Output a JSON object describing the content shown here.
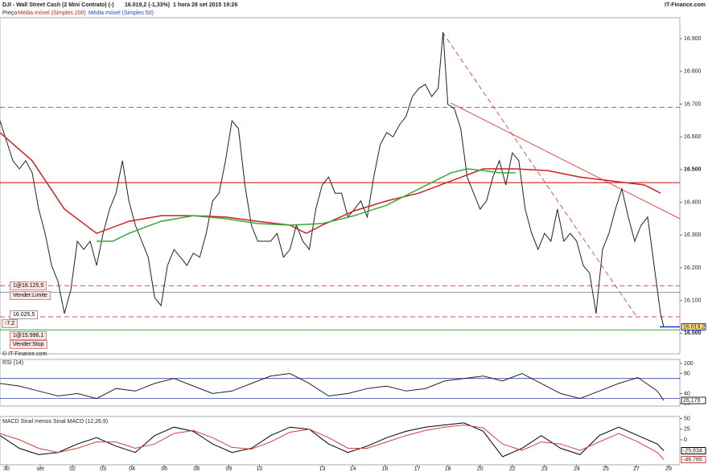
{
  "header": {
    "title": "DJI - Wall Street Cash (2 Mini Contrato) (-)",
    "last": "16.019,2 (-1,33%)",
    "interval": "1 hora",
    "timestamp": "28 set 2015 19:26",
    "brand": "IT-Finance.com",
    "watermark": "© IT-Finance.com"
  },
  "orders": [
    {
      "label": "1@16.125,5",
      "action": "Vender:Limite"
    },
    {
      "label": "1@15.996,1",
      "action": "Vender:Stop"
    }
  ],
  "position": {
    "price": "16.025,5",
    "pnl": "-7.2"
  },
  "chart_data": [
    {
      "type": "line",
      "xlim": [
        0,
        211
      ],
      "ylim": [
        15937,
        16964
      ],
      "yticks": [
        {
          "value": 16000,
          "label": "16.000"
        },
        {
          "value": 16100,
          "label": "16.100"
        },
        {
          "value": 16200,
          "label": "16.200"
        },
        {
          "value": 16300,
          "label": "16.300"
        },
        {
          "value": 16400,
          "label": "16.400"
        },
        {
          "value": 16500,
          "label": "16.500"
        },
        {
          "value": 16600,
          "label": "16.600"
        },
        {
          "value": 16700,
          "label": "16.700"
        },
        {
          "value": 16800,
          "label": "16.800"
        },
        {
          "value": 16900,
          "label": "16.900"
        }
      ],
      "levels": [
        {
          "value": 16690,
          "color": "#e05050",
          "dashed": true
        },
        {
          "value": 16460,
          "color": "#cc0000",
          "dashed": false
        },
        {
          "value": 16145,
          "color": "#e05050",
          "dashed": true
        },
        {
          "value": 16125,
          "color": "#999999",
          "dashed": false
        },
        {
          "value": 16050,
          "color": "#e05050",
          "dashed": true
        },
        {
          "value": 16010,
          "color": "#33aa33",
          "dashed": false
        }
      ],
      "last_price": {
        "value": 16019.2,
        "label": "16.019,2"
      },
      "series": [
        {
          "name": "Preço",
          "color": "#222222",
          "x": [
            0,
            2,
            4,
            6,
            8,
            10,
            12,
            14,
            16,
            18,
            20,
            22,
            24,
            26,
            28,
            30,
            32,
            34,
            36,
            38,
            40,
            42,
            44,
            46,
            48,
            50,
            52,
            54,
            56,
            58,
            60,
            62,
            64,
            66,
            68,
            70,
            72,
            74,
            76,
            78,
            80,
            82,
            84,
            86,
            88,
            90,
            92,
            94,
            96,
            98,
            100,
            102,
            104,
            106,
            108,
            110,
            112,
            114,
            116,
            118,
            120,
            122,
            124,
            126,
            128,
            130,
            132,
            134,
            136,
            137.5,
            139,
            141,
            143,
            145,
            147,
            149,
            151,
            153,
            155,
            157,
            159,
            161,
            163,
            165,
            167,
            169,
            171,
            173,
            175,
            177,
            179,
            181,
            183,
            185,
            187,
            189,
            191,
            193,
            195,
            197,
            199,
            201,
            203,
            205,
            206
          ],
          "values": [
            16649,
            16588,
            16527,
            16502,
            16527,
            16490,
            16379,
            16305,
            16207,
            16158,
            16060,
            16133,
            16281,
            16256,
            16281,
            16207,
            16305,
            16379,
            16428,
            16527,
            16404,
            16330,
            16281,
            16232,
            16109,
            16084,
            16207,
            16256,
            16232,
            16207,
            16244,
            16232,
            16305,
            16404,
            16428,
            16527,
            16649,
            16625,
            16453,
            16330,
            16281,
            16281,
            16281,
            16305,
            16232,
            16256,
            16330,
            16281,
            16256,
            16379,
            16453,
            16477,
            16428,
            16428,
            16355,
            16379,
            16404,
            16355,
            16477,
            16576,
            16613,
            16600,
            16637,
            16662,
            16723,
            16748,
            16760,
            16723,
            16748,
            16920,
            16699,
            16686,
            16625,
            16477,
            16428,
            16379,
            16404,
            16477,
            16527,
            16453,
            16551,
            16527,
            16379,
            16305,
            16256,
            16305,
            16281,
            16379,
            16281,
            16305,
            16281,
            16207,
            16183,
            16060,
            16256,
            16305,
            16379,
            16441,
            16355,
            16281,
            16330,
            16355,
            16207,
            16060,
            16019
          ]
        },
        {
          "name": "Média móvel (Simples 200)",
          "color": "#cc2222",
          "x": [
            0,
            10,
            20,
            30,
            40,
            50,
            60,
            70,
            80,
            90,
            95,
            100,
            110,
            120,
            130,
            140,
            150,
            160,
            170,
            180,
            190,
            200,
            205
          ],
          "values": [
            16613,
            16527,
            16379,
            16305,
            16342,
            16359,
            16359,
            16355,
            16342,
            16330,
            16305,
            16330,
            16374,
            16404,
            16428,
            16465,
            16502,
            16502,
            16497,
            16477,
            16465,
            16453,
            16428
          ]
        },
        {
          "name": "Média móvel (Simples 50)",
          "color": "#33aa33",
          "x": [
            30,
            35,
            40,
            50,
            60,
            70,
            80,
            90,
            100,
            110,
            120,
            130,
            140,
            145,
            150,
            155,
            160
          ],
          "values": [
            16281,
            16281,
            16305,
            16342,
            16359,
            16350,
            16335,
            16330,
            16335,
            16359,
            16391,
            16441,
            16490,
            16502,
            16497,
            16490,
            16490
          ]
        }
      ]
    },
    {
      "type": "line",
      "title": "RSI (14)",
      "xlim": [
        0,
        211
      ],
      "ylim": [
        15,
        108
      ],
      "yticks": [
        20,
        40,
        80,
        100
      ],
      "bands": [
        70,
        30
      ],
      "series": [
        {
          "color": "#222222",
          "last_label": "26,179",
          "x": [
            0,
            6,
            12,
            18,
            24,
            30,
            36,
            42,
            48,
            54,
            60,
            66,
            72,
            78,
            84,
            90,
            96,
            102,
            108,
            114,
            120,
            126,
            132,
            138,
            144,
            150,
            156,
            162,
            168,
            174,
            180,
            186,
            192,
            198,
            204,
            206
          ],
          "values": [
            60,
            55,
            45,
            35,
            40,
            30,
            50,
            45,
            60,
            70,
            55,
            40,
            45,
            60,
            75,
            80,
            60,
            35,
            40,
            50,
            55,
            45,
            50,
            65,
            70,
            75,
            65,
            80,
            60,
            40,
            30,
            45,
            60,
            72,
            45,
            26.179
          ]
        }
      ]
    },
    {
      "type": "line",
      "title": "MACD Sinal menos Sinal MACD (12,26,9)",
      "xlim": [
        0,
        211
      ],
      "ylim": [
        -59,
        55
      ],
      "yticks": [
        0,
        25,
        50
      ],
      "xticks": [
        {
          "value": 2,
          "label": "30"
        },
        {
          "value": 12.5,
          "label": "set"
        },
        {
          "value": 22.5,
          "label": "02"
        },
        {
          "value": 32,
          "label": "03"
        },
        {
          "value": 41,
          "label": "04"
        },
        {
          "value": 51,
          "label": "06"
        },
        {
          "value": 61,
          "label": "08"
        },
        {
          "value": 71,
          "label": "09"
        },
        {
          "value": 80.5,
          "label": "10"
        },
        {
          "value": 100,
          "label": "13"
        },
        {
          "value": 109.5,
          "label": "14"
        },
        {
          "value": 119.5,
          "label": "16"
        },
        {
          "value": 129.5,
          "label": "17"
        },
        {
          "value": 139,
          "label": "18"
        },
        {
          "value": 149,
          "label": "20"
        },
        {
          "value": 159,
          "label": "22"
        },
        {
          "value": 169,
          "label": "23"
        },
        {
          "value": 179,
          "label": "24"
        },
        {
          "value": 188,
          "label": "25"
        },
        {
          "value": 197.5,
          "label": "27"
        },
        {
          "value": 207.5,
          "label": "29"
        }
      ],
      "series": [
        {
          "color": "#000000",
          "last_label": "-25,834",
          "x": [
            0,
            6,
            12,
            18,
            24,
            30,
            36,
            42,
            48,
            54,
            60,
            66,
            72,
            78,
            84,
            90,
            96,
            102,
            108,
            114,
            120,
            126,
            132,
            138,
            144,
            150,
            156,
            162,
            168,
            174,
            180,
            186,
            192,
            198,
            204,
            206
          ],
          "values": [
            10,
            -20,
            -35,
            -30,
            -10,
            5,
            -15,
            -30,
            10,
            30,
            20,
            -10,
            -30,
            -20,
            10,
            30,
            25,
            -10,
            -30,
            -15,
            5,
            20,
            30,
            35,
            40,
            20,
            -40,
            -20,
            10,
            -20,
            -35,
            10,
            30,
            10,
            -10,
            -25.834
          ]
        },
        {
          "color": "#d04040",
          "last_label": "-46,765",
          "x": [
            0,
            6,
            12,
            18,
            24,
            30,
            36,
            42,
            48,
            54,
            60,
            66,
            72,
            78,
            84,
            90,
            96,
            102,
            108,
            114,
            120,
            126,
            132,
            138,
            144,
            150,
            156,
            162,
            168,
            174,
            180,
            186,
            192,
            198,
            204,
            206
          ],
          "values": [
            15,
            0,
            -20,
            -30,
            -20,
            -5,
            -5,
            -20,
            -10,
            15,
            22,
            5,
            -18,
            -22,
            -5,
            18,
            25,
            5,
            -20,
            -20,
            -5,
            10,
            22,
            30,
            35,
            28,
            -10,
            -25,
            -5,
            -10,
            -25,
            -5,
            15,
            -5,
            -30,
            -46.765
          ]
        }
      ]
    }
  ]
}
